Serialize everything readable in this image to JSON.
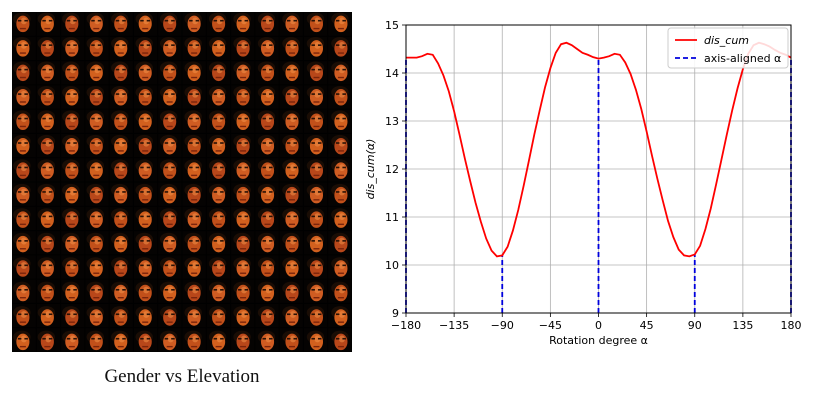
{
  "face_panel": {
    "caption": "Gender vs Elevation",
    "grid": {
      "rows": 14,
      "cols": 14
    }
  },
  "chart_data": {
    "type": "line",
    "title": "",
    "xlabel": "Rotation degree α",
    "ylabel": "dis_cum(α)",
    "xlim": [
      -180,
      180
    ],
    "ylim": [
      9,
      15
    ],
    "xticks": [
      -180,
      -135,
      -90,
      -45,
      0,
      45,
      90,
      135,
      180
    ],
    "xtick_labels": [
      "−180",
      "−135",
      "−90",
      "−45",
      "0",
      "45",
      "90",
      "135",
      "180"
    ],
    "yticks": [
      9,
      10,
      11,
      12,
      13,
      14,
      15
    ],
    "ytick_labels": [
      "9",
      "10",
      "11",
      "12",
      "13",
      "14",
      "15"
    ],
    "grid": true,
    "legend": "top-right",
    "series": [
      {
        "name": "dis_cum",
        "color": "#ff0000",
        "style": "solid",
        "x": [
          -180,
          -170,
          -165,
          -160,
          -155,
          -150,
          -145,
          -140,
          -135,
          -130,
          -125,
          -120,
          -115,
          -110,
          -105,
          -100,
          -95,
          -90,
          -85,
          -80,
          -75,
          -70,
          -65,
          -60,
          -55,
          -50,
          -45,
          -40,
          -35,
          -30,
          -25,
          -20,
          -15,
          -10,
          -5,
          0,
          5,
          10,
          15,
          20,
          25,
          30,
          35,
          40,
          45,
          50,
          55,
          60,
          65,
          70,
          75,
          80,
          85,
          90,
          95,
          100,
          105,
          110,
          115,
          120,
          125,
          130,
          135,
          140,
          145,
          150,
          155,
          160,
          165,
          170,
          175,
          180
        ],
        "y": [
          14.32,
          14.32,
          14.35,
          14.4,
          14.38,
          14.2,
          13.95,
          13.62,
          13.2,
          12.72,
          12.22,
          11.75,
          11.3,
          10.9,
          10.55,
          10.3,
          10.18,
          10.2,
          10.38,
          10.72,
          11.15,
          11.65,
          12.18,
          12.72,
          13.22,
          13.7,
          14.1,
          14.42,
          14.6,
          14.63,
          14.58,
          14.5,
          14.42,
          14.38,
          14.33,
          14.3,
          14.32,
          14.35,
          14.4,
          14.38,
          14.22,
          13.98,
          13.65,
          13.25,
          12.78,
          12.28,
          11.8,
          11.35,
          10.92,
          10.58,
          10.32,
          10.2,
          10.18,
          10.22,
          10.4,
          10.75,
          11.18,
          11.68,
          12.2,
          12.72,
          13.22,
          13.68,
          14.08,
          14.4,
          14.58,
          14.63,
          14.6,
          14.55,
          14.48,
          14.42,
          14.38,
          14.32
        ]
      },
      {
        "name": "axis-aligned α",
        "color": "#0000dd",
        "style": "dashed",
        "vlines": [
          -180,
          -90,
          0,
          90,
          180
        ]
      }
    ]
  }
}
